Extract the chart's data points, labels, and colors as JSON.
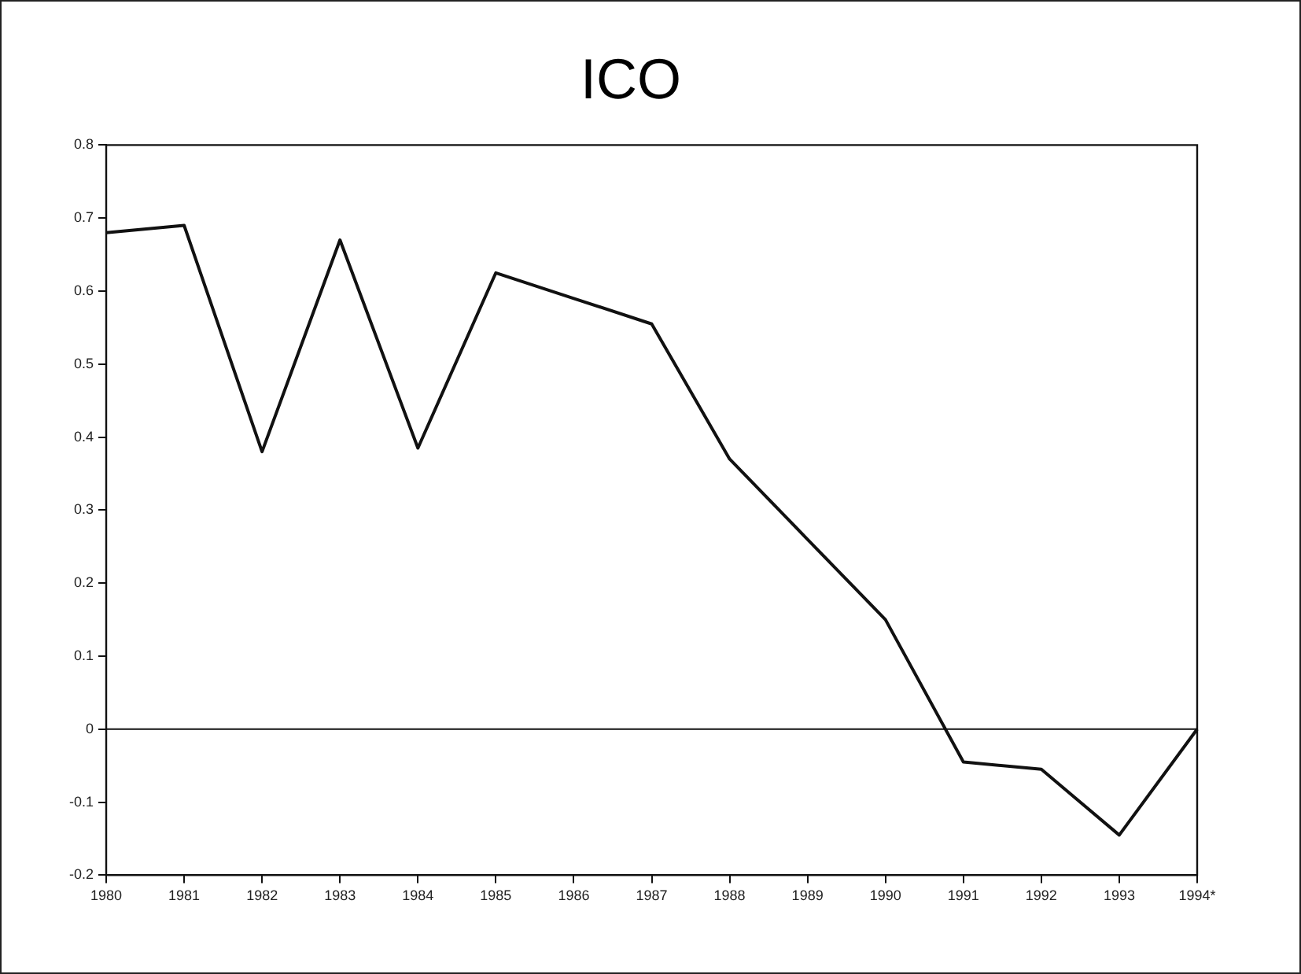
{
  "chart_data": {
    "type": "line",
    "title": "ICO",
    "categories": [
      "1980",
      "1981",
      "1982",
      "1983",
      "1984",
      "1985",
      "1986",
      "1987",
      "1988",
      "1989",
      "1990",
      "1991",
      "1992",
      "1993",
      "1994*"
    ],
    "series": [
      {
        "color": "#111111",
        "values": [
          0.68,
          0.69,
          0.38,
          0.67,
          0.385,
          0.625,
          0.59,
          0.555,
          0.37,
          0.26,
          0.15,
          -0.045,
          -0.055,
          -0.145,
          0
        ]
      }
    ],
    "ylim": [
      -0.2,
      0.8
    ],
    "yticks": [
      -0.2,
      -0.1,
      0,
      0.1,
      0.2,
      0.3,
      0.4,
      0.5,
      0.6,
      0.7,
      0.8
    ],
    "ref_lines": [
      {
        "axis": "y",
        "value": 0,
        "color": "#111111"
      }
    ],
    "marker": "none",
    "line_style": "solid",
    "legend": false
  }
}
